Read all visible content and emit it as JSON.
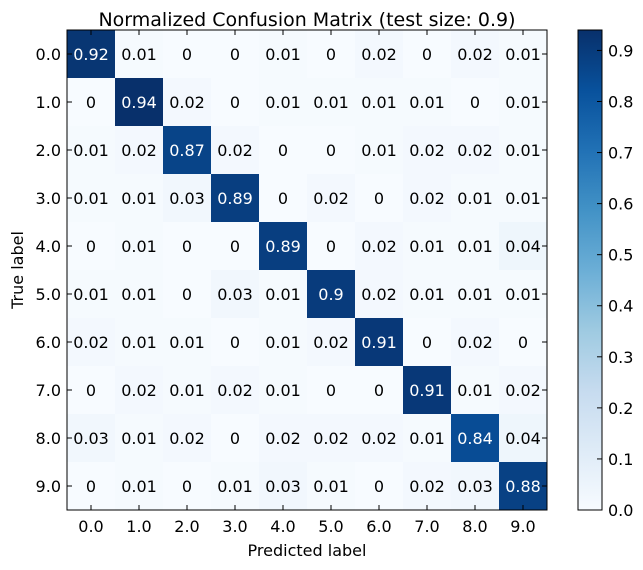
{
  "chart_data": {
    "type": "heatmap",
    "title": "Normalized Confusion Matrix (test size: 0.9)",
    "xlabel": "Predicted label",
    "ylabel": "True label",
    "x_categories": [
      "0.0",
      "1.0",
      "2.0",
      "3.0",
      "4.0",
      "5.0",
      "6.0",
      "7.0",
      "8.0",
      "9.0"
    ],
    "y_categories": [
      "0.0",
      "1.0",
      "2.0",
      "3.0",
      "4.0",
      "5.0",
      "6.0",
      "7.0",
      "8.0",
      "9.0"
    ],
    "values": [
      [
        0.92,
        0.01,
        0.0,
        0.0,
        0.01,
        0.0,
        0.02,
        0.0,
        0.02,
        0.01
      ],
      [
        0.0,
        0.94,
        0.02,
        0.0,
        0.01,
        0.01,
        0.01,
        0.01,
        0.0,
        0.01
      ],
      [
        0.01,
        0.02,
        0.87,
        0.02,
        0.0,
        0.0,
        0.01,
        0.02,
        0.02,
        0.01
      ],
      [
        0.01,
        0.01,
        0.03,
        0.89,
        0.0,
        0.02,
        0.0,
        0.02,
        0.01,
        0.01
      ],
      [
        0.0,
        0.01,
        0.0,
        0.0,
        0.89,
        0.0,
        0.02,
        0.01,
        0.01,
        0.04
      ],
      [
        0.01,
        0.01,
        0.0,
        0.03,
        0.01,
        0.9,
        0.02,
        0.01,
        0.01,
        0.01
      ],
      [
        0.02,
        0.01,
        0.01,
        0.0,
        0.01,
        0.02,
        0.91,
        0.0,
        0.02,
        0.0
      ],
      [
        0.0,
        0.02,
        0.01,
        0.02,
        0.01,
        0.0,
        0.0,
        0.91,
        0.01,
        0.02
      ],
      [
        0.03,
        0.01,
        0.02,
        0.0,
        0.02,
        0.02,
        0.02,
        0.01,
        0.84,
        0.04
      ],
      [
        0.0,
        0.01,
        0.0,
        0.01,
        0.03,
        0.01,
        0.0,
        0.02,
        0.03,
        0.88
      ]
    ],
    "colorscale": "Blues",
    "colorbar": {
      "min": 0.0,
      "max": 0.94,
      "ticks": [
        "0.0",
        "0.1",
        "0.2",
        "0.3",
        "0.4",
        "0.5",
        "0.6",
        "0.7",
        "0.8",
        "0.9"
      ]
    }
  }
}
